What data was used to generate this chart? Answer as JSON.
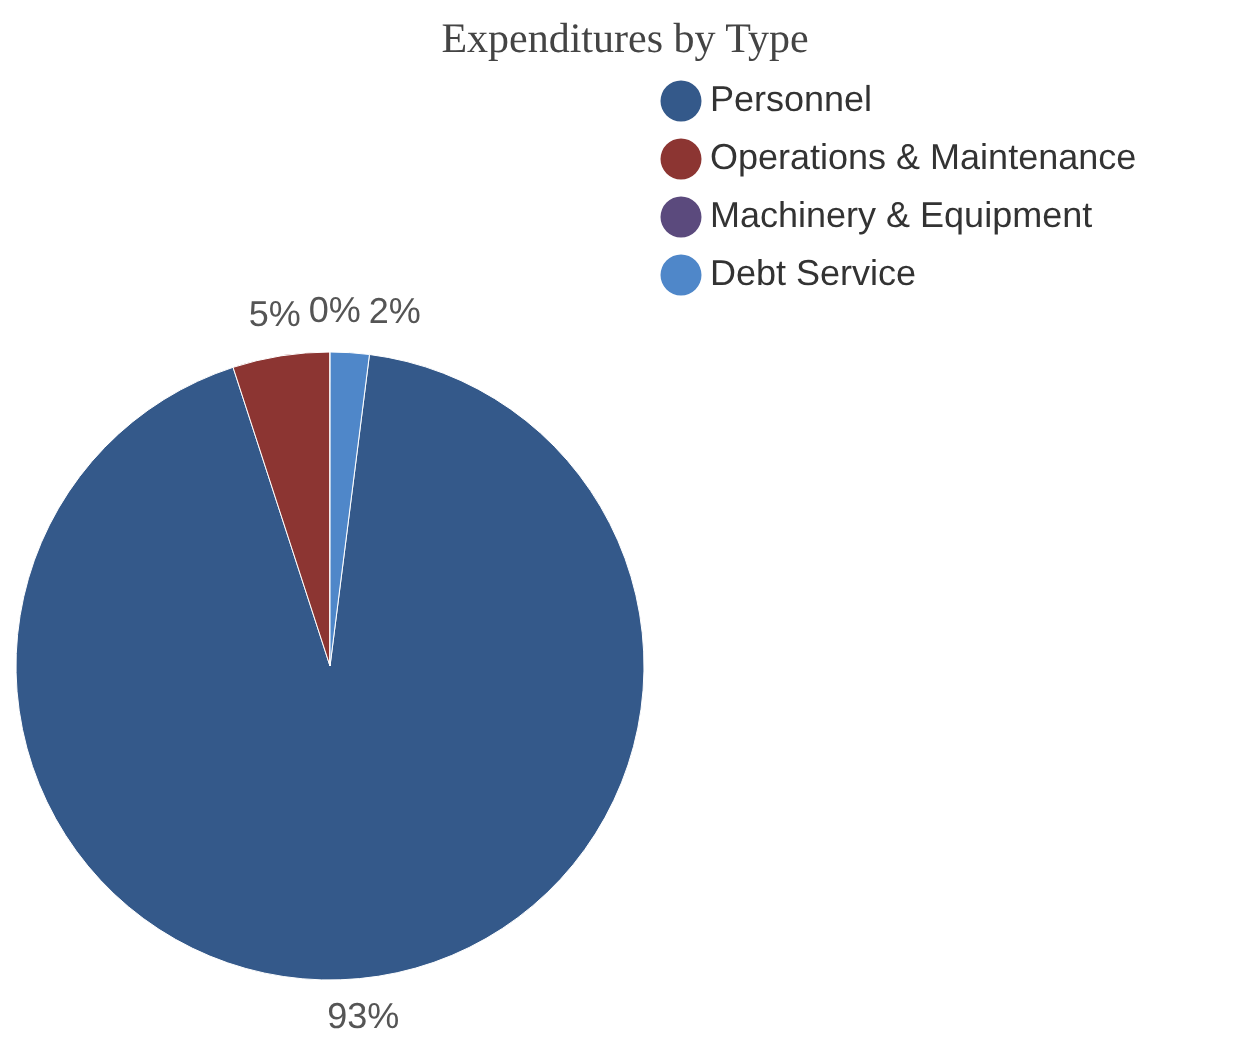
{
  "chart_data": {
    "type": "pie",
    "title": "Expenditures by Type",
    "categories": [
      "Personnel",
      "Operations & Maintenance",
      "Machinery & Equipment",
      "Debt Service"
    ],
    "values": [
      93,
      5,
      0,
      2
    ],
    "colors": [
      "#34598a",
      "#8c3532",
      "#5b4a7d",
      "#4f87c9"
    ],
    "value_labels": [
      "93%",
      "5%",
      "0%",
      "2%"
    ],
    "legend": "top right"
  }
}
